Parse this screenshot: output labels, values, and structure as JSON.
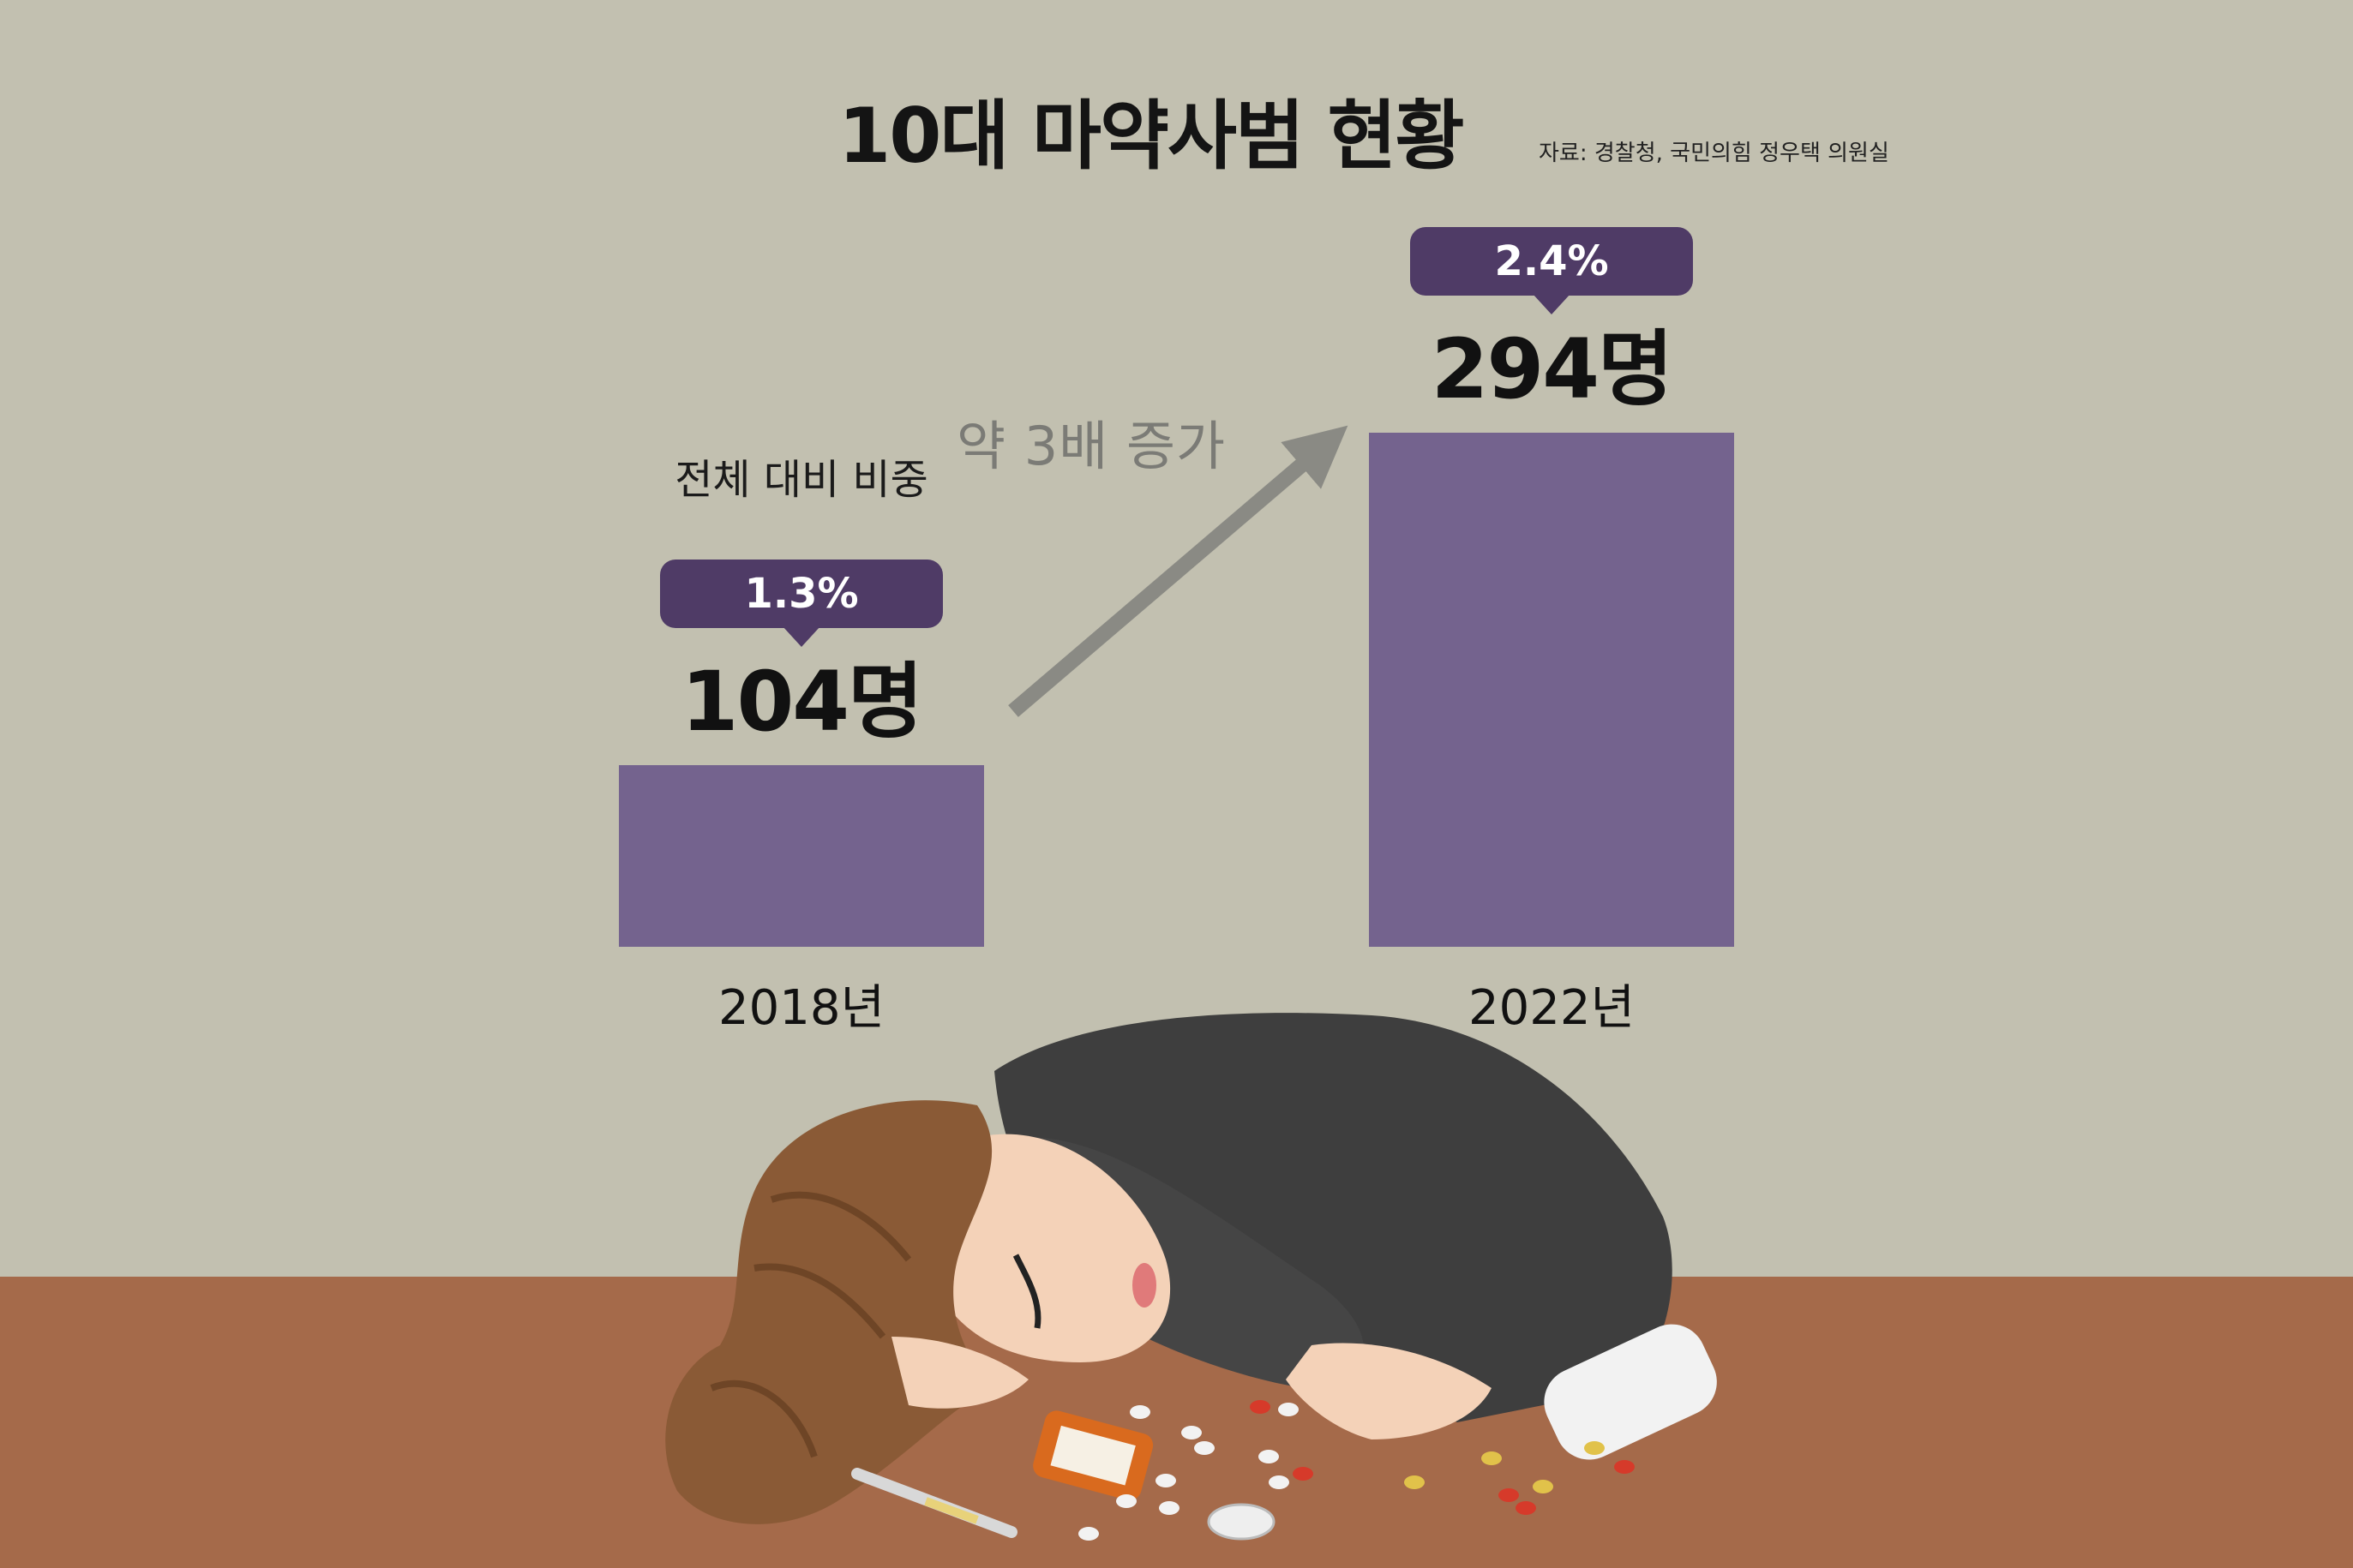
{
  "chart_data": {
    "type": "bar",
    "title": "10대 마약사범 현황",
    "source": "자료: 경찰청, 국민의힘 정우택 의원실",
    "categories": [
      "2018년",
      "2022년"
    ],
    "values": [
      104,
      294
    ],
    "value_labels": [
      "104명",
      "294명"
    ],
    "share_label": "전체 대비 비중",
    "share_values": [
      "1.3%",
      "2.4%"
    ],
    "trend_label": "약 3배 증가",
    "bar_color": "#74638e",
    "bubble_color": "#4f3b66",
    "background_color": "#c2c0b0",
    "grid": false
  },
  "illustration": {
    "description_icon": "sleeping-person-with-pills-illustration",
    "table_color": "#a56a4a"
  }
}
